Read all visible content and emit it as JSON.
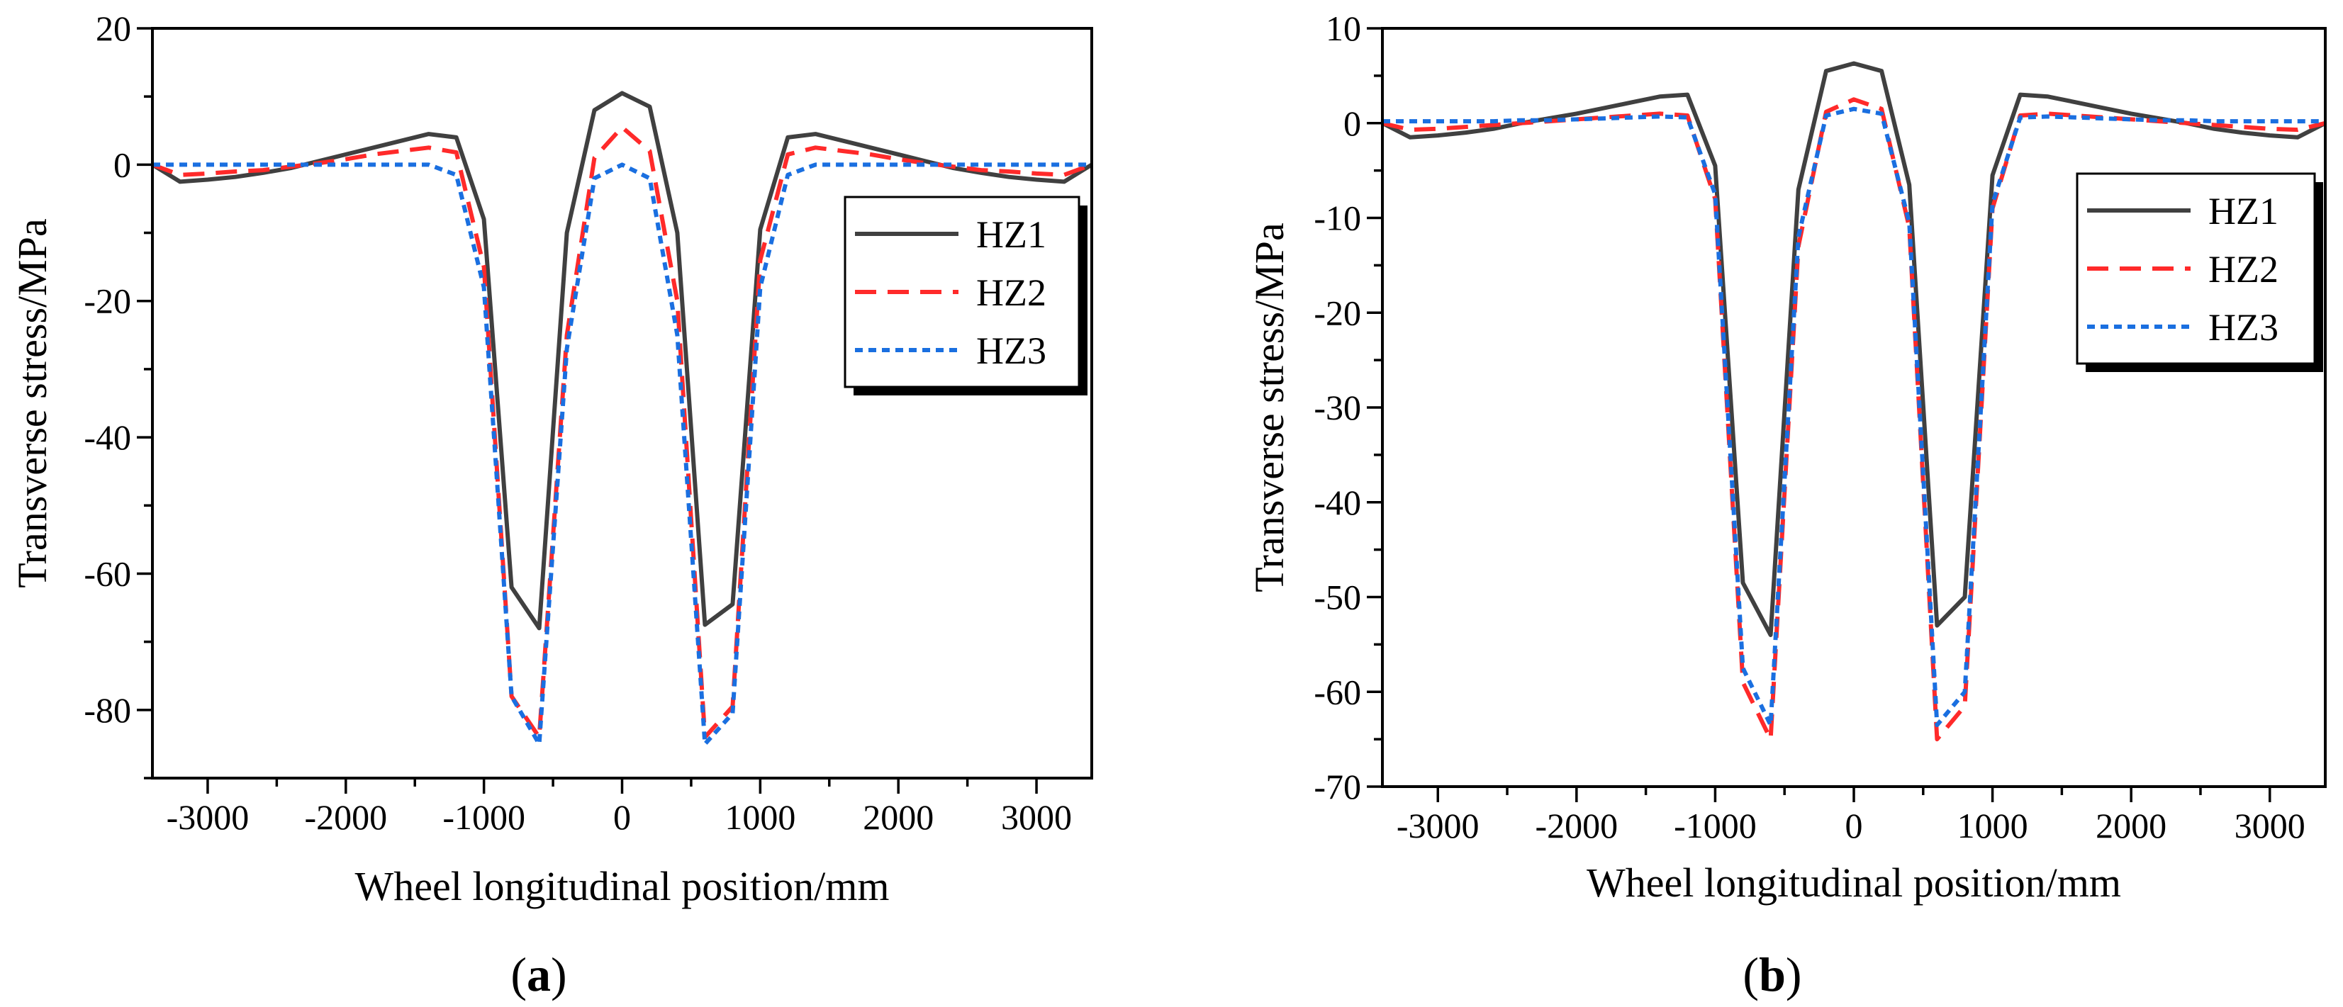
{
  "chart_data": [
    {
      "type": "line",
      "panel_label": {
        "open": "(",
        "letter": "a",
        "close": ")"
      },
      "xlabel": "Wheel longitudinal position/mm",
      "ylabel": "Transverse stress/MPa",
      "xlim": [
        -3400,
        3400
      ],
      "ylim": [
        -90,
        20
      ],
      "xticks": [
        -3000,
        -2000,
        -1000,
        0,
        1000,
        2000,
        3000
      ],
      "xtick_labels": [
        "-3000",
        "-2000",
        "-1000",
        "0",
        "1000",
        "2000",
        "3000"
      ],
      "yticks": [
        20,
        0,
        -20,
        -40,
        -60,
        -80
      ],
      "ytick_labels": [
        "20",
        "0",
        "-20",
        "-40",
        "-60",
        "-80"
      ],
      "legend": "right",
      "series": [
        {
          "name": "HZ1",
          "color": "#404040",
          "dash": "solid",
          "x": [
            -3400,
            -3200,
            -3000,
            -2800,
            -2600,
            -2400,
            -2200,
            -2000,
            -1800,
            -1600,
            -1400,
            -1200,
            -1000,
            -800,
            -600,
            -400,
            -200,
            0,
            200,
            400,
            600,
            800,
            1000,
            1200,
            1400,
            1600,
            1800,
            2000,
            2200,
            2400,
            2600,
            2800,
            3000,
            3200,
            3400
          ],
          "y": [
            0,
            -2.5,
            -2.2,
            -1.8,
            -1.2,
            -0.5,
            0.5,
            1.5,
            2.5,
            3.5,
            4.5,
            4,
            -8,
            -62,
            -68,
            -10,
            8,
            10.5,
            8.5,
            -10,
            -67.5,
            -64.5,
            -9.5,
            4,
            4.5,
            3.5,
            2.5,
            1.5,
            0.5,
            -0.5,
            -1.2,
            -1.8,
            -2.2,
            -2.5,
            0
          ]
        },
        {
          "name": "HZ2",
          "color": "#ff2a2a",
          "dash": "dashed",
          "x": [
            -3400,
            -3200,
            -3000,
            -2800,
            -2600,
            -2400,
            -2200,
            -2000,
            -1800,
            -1600,
            -1400,
            -1200,
            -1000,
            -800,
            -600,
            -400,
            -200,
            0,
            200,
            400,
            600,
            800,
            1000,
            1200,
            1400,
            1600,
            1800,
            2000,
            2200,
            2400,
            2600,
            2800,
            3000,
            3200,
            3400
          ],
          "y": [
            0,
            -1.5,
            -1.3,
            -1,
            -0.8,
            -0.3,
            0.2,
            0.8,
            1.5,
            2,
            2.5,
            1.8,
            -15,
            -78,
            -84,
            -25,
            1,
            5.5,
            2,
            -20,
            -84,
            -79.5,
            -14,
            1.5,
            2.5,
            2,
            1.5,
            0.8,
            0.2,
            -0.3,
            -0.8,
            -1,
            -1.3,
            -1.5,
            0
          ]
        },
        {
          "name": "HZ3",
          "color": "#1a6fe0",
          "dash": "dotted",
          "x": [
            -3400,
            -3200,
            -3000,
            -2800,
            -2600,
            -2400,
            -2200,
            -2000,
            -1800,
            -1600,
            -1400,
            -1200,
            -1000,
            -800,
            -600,
            -400,
            -200,
            0,
            200,
            400,
            600,
            800,
            1000,
            1200,
            1400,
            1600,
            1800,
            2000,
            2200,
            2400,
            2600,
            2800,
            3000,
            3200,
            3400
          ],
          "y": [
            0,
            0,
            0,
            0,
            0,
            0,
            0,
            0,
            0,
            0,
            0,
            -1.5,
            -18,
            -78,
            -85,
            -27,
            -2,
            0,
            -2,
            -25,
            -85,
            -80.5,
            -18,
            -1.5,
            0,
            0,
            0,
            0,
            0,
            0,
            0,
            0,
            0,
            0,
            0
          ]
        }
      ]
    },
    {
      "type": "line",
      "panel_label": {
        "open": "(",
        "letter": "b",
        "close": ")"
      },
      "xlabel": "Wheel longitudinal position/mm",
      "ylabel": "Transverse stress/MPa",
      "xlim": [
        -3400,
        3400
      ],
      "ylim": [
        -70,
        10
      ],
      "xticks": [
        -3000,
        -2000,
        -1000,
        0,
        1000,
        2000,
        3000
      ],
      "xtick_labels": [
        "-3000",
        "-2000",
        "-1000",
        "0",
        "1000",
        "2000",
        "3000"
      ],
      "yticks": [
        10,
        0,
        -10,
        -20,
        -30,
        -40,
        -50,
        -60,
        -70
      ],
      "ytick_labels": [
        "10",
        "0",
        "-10",
        "-20",
        "-30",
        "-40",
        "-50",
        "-60",
        "-70"
      ],
      "legend": "top-right",
      "series": [
        {
          "name": "HZ1",
          "color": "#404040",
          "dash": "solid",
          "x": [
            -3400,
            -3200,
            -3000,
            -2800,
            -2600,
            -2400,
            -2200,
            -2000,
            -1800,
            -1600,
            -1400,
            -1200,
            -1000,
            -800,
            -600,
            -400,
            -200,
            0,
            200,
            400,
            600,
            800,
            1000,
            1200,
            1400,
            1600,
            1800,
            2000,
            2200,
            2400,
            2600,
            2800,
            3000,
            3200,
            3400
          ],
          "y": [
            0,
            -1.5,
            -1.3,
            -1,
            -0.6,
            0,
            0.5,
            1,
            1.6,
            2.2,
            2.8,
            3,
            -4.5,
            -48.5,
            -54,
            -7,
            5.5,
            6.3,
            5.5,
            -6.5,
            -53,
            -50,
            -5.5,
            3,
            2.8,
            2.2,
            1.6,
            1,
            0.5,
            0,
            -0.6,
            -1,
            -1.3,
            -1.5,
            0
          ]
        },
        {
          "name": "HZ2",
          "color": "#ff2a2a",
          "dash": "dashed",
          "x": [
            -3400,
            -3200,
            -3000,
            -2800,
            -2600,
            -2400,
            -2200,
            -2000,
            -1800,
            -1600,
            -1400,
            -1200,
            -1000,
            -800,
            -600,
            -400,
            -200,
            0,
            200,
            400,
            600,
            800,
            1000,
            1200,
            1400,
            1600,
            1800,
            2000,
            2200,
            2400,
            2600,
            2800,
            3000,
            3200,
            3400
          ],
          "y": [
            0,
            -0.7,
            -0.6,
            -0.4,
            -0.2,
            0,
            0.2,
            0.4,
            0.6,
            0.8,
            1,
            0.8,
            -8,
            -59,
            -65,
            -13,
            1.2,
            2.5,
            1.5,
            -11,
            -65,
            -61.5,
            -9,
            0.8,
            1,
            0.8,
            0.6,
            0.4,
            0.2,
            0,
            -0.2,
            -0.4,
            -0.6,
            -0.7,
            0
          ]
        },
        {
          "name": "HZ3",
          "color": "#1a6fe0",
          "dash": "dotted",
          "x": [
            -3400,
            -3200,
            -3000,
            -2800,
            -2600,
            -2400,
            -2200,
            -2000,
            -1800,
            -1600,
            -1400,
            -1200,
            -1000,
            -800,
            -600,
            -400,
            -200,
            0,
            200,
            400,
            600,
            800,
            1000,
            1200,
            1400,
            1600,
            1800,
            2000,
            2200,
            2400,
            2600,
            2800,
            3000,
            3200,
            3400
          ],
          "y": [
            0.2,
            0.2,
            0.2,
            0.2,
            0.2,
            0.3,
            0.3,
            0.4,
            0.5,
            0.6,
            0.7,
            0.6,
            -7.5,
            -57.5,
            -63.5,
            -12,
            0.8,
            1.5,
            1,
            -10.5,
            -63.5,
            -60,
            -8.5,
            0.6,
            0.7,
            0.6,
            0.5,
            0.4,
            0.3,
            0.3,
            0.2,
            0.2,
            0.2,
            0.2,
            0.2
          ]
        }
      ]
    }
  ]
}
